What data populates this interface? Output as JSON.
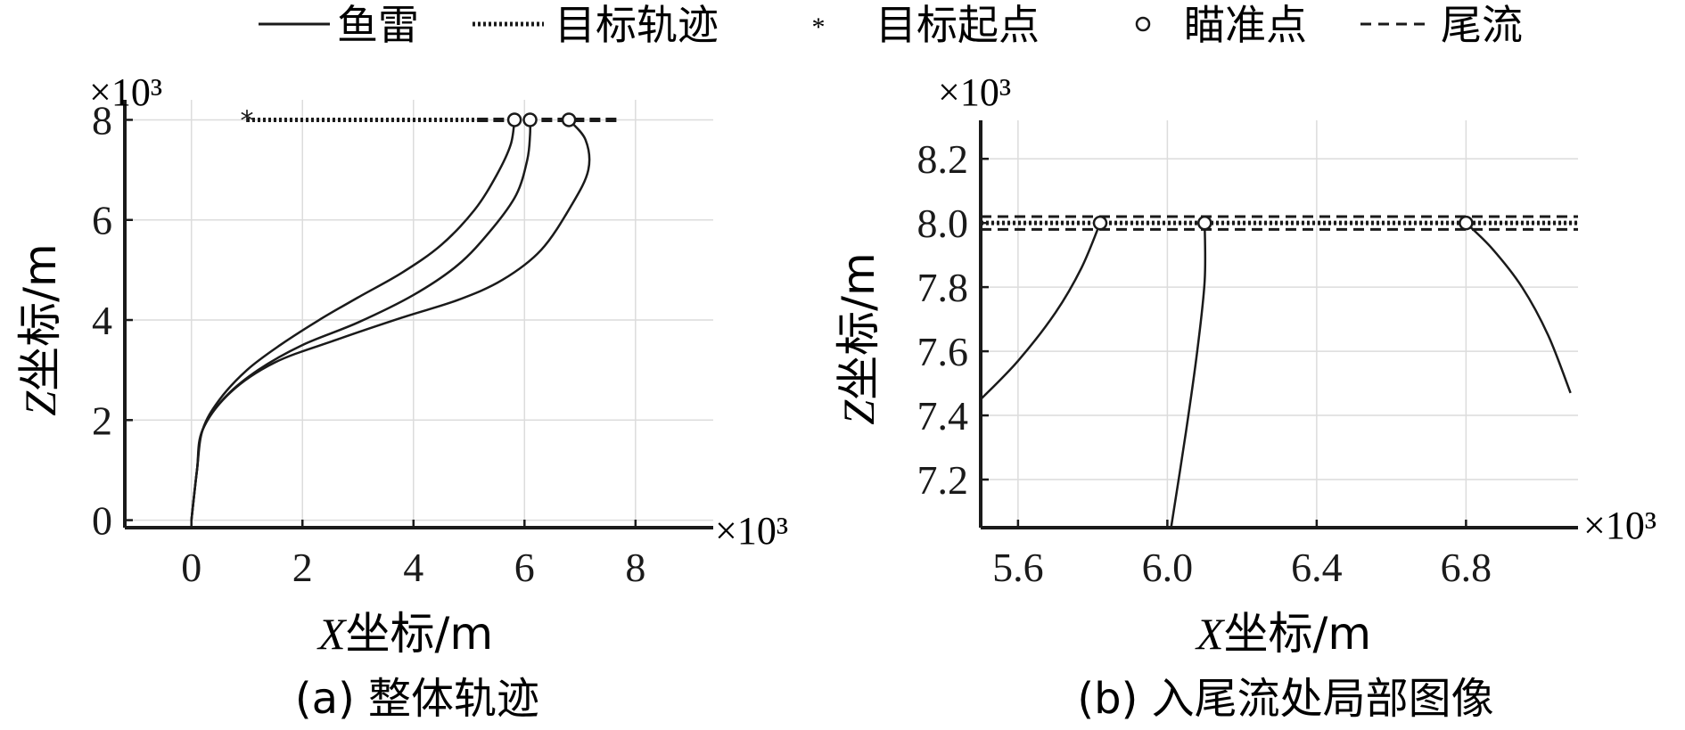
{
  "legend": [
    {
      "label": "鱼雷",
      "style": "solid"
    },
    {
      "label": "目标轨迹",
      "style": "dotted"
    },
    {
      "label": "目标起点",
      "style": "star"
    },
    {
      "label": "瞄准点",
      "style": "circle"
    },
    {
      "label": "尾流",
      "style": "dashed"
    }
  ],
  "colors": {
    "line": "#1a1a1a",
    "grid": "#dcdcdc"
  },
  "chart_data": [
    {
      "type": "line",
      "caption": "(a) 整体轨迹",
      "xlabel_var": "X",
      "xlabel_rest": "坐标/m",
      "ylabel_var": "Z",
      "ylabel_rest": "坐标/m",
      "x_multiplier": "×10³",
      "y_multiplier": "×10³",
      "xlim": [
        -1.2,
        9.4
      ],
      "ylim": [
        -0.15,
        8.4
      ],
      "xticks": [
        0,
        2,
        4,
        6,
        8
      ],
      "yticks": [
        0,
        2,
        4,
        6,
        8
      ],
      "xtick_labels": [
        "0",
        "2",
        "4",
        "6",
        "8"
      ],
      "ytick_labels": [
        "0",
        "2",
        "4",
        "6",
        "8"
      ],
      "grid": true,
      "series": [
        {
          "name": "鱼雷",
          "style": "solid",
          "points": [
            [
              0,
              0
            ],
            [
              0.1,
              1.0
            ],
            [
              0.2,
              1.8
            ],
            [
              0.5,
              2.4
            ],
            [
              1.0,
              3.0
            ],
            [
              1.6,
              3.5
            ],
            [
              2.3,
              4.0
            ],
            [
              3.0,
              4.45
            ],
            [
              3.8,
              4.95
            ],
            [
              4.5,
              5.5
            ],
            [
              5.1,
              6.2
            ],
            [
              5.5,
              6.9
            ],
            [
              5.75,
              7.5
            ],
            [
              5.82,
              8.0
            ]
          ]
        },
        {
          "name": "鱼雷",
          "style": "solid",
          "points": [
            [
              0,
              0
            ],
            [
              0.1,
              1.0
            ],
            [
              0.2,
              1.8
            ],
            [
              0.6,
              2.45
            ],
            [
              1.2,
              3.0
            ],
            [
              2.0,
              3.5
            ],
            [
              3.0,
              3.95
            ],
            [
              4.0,
              4.5
            ],
            [
              4.8,
              5.1
            ],
            [
              5.4,
              5.8
            ],
            [
              5.85,
              6.5
            ],
            [
              6.05,
              7.2
            ],
            [
              6.1,
              7.7
            ],
            [
              6.1,
              8.0
            ]
          ]
        },
        {
          "name": "鱼雷",
          "style": "solid",
          "points": [
            [
              0,
              0
            ],
            [
              0.1,
              1.0
            ],
            [
              0.2,
              1.8
            ],
            [
              0.7,
              2.55
            ],
            [
              1.5,
              3.15
            ],
            [
              2.6,
              3.6
            ],
            [
              3.8,
              4.05
            ],
            [
              4.8,
              4.4
            ],
            [
              5.6,
              4.8
            ],
            [
              6.3,
              5.4
            ],
            [
              6.85,
              6.3
            ],
            [
              7.15,
              7.0
            ],
            [
              7.1,
              7.6
            ],
            [
              6.8,
              8.0
            ]
          ]
        }
      ],
      "target_track": {
        "x": [
          1.0,
          5.15
        ],
        "z": 8.0
      },
      "target_start": {
        "x": 1.0,
        "z": 8.0
      },
      "aim_points": [
        [
          5.82,
          8.0
        ],
        [
          6.1,
          8.0
        ],
        [
          6.8,
          8.0
        ]
      ],
      "wake": {
        "x": [
          5.15,
          7.7
        ],
        "z": 8.0
      }
    },
    {
      "type": "line",
      "caption": "(b) 入尾流处局部图像",
      "xlabel_var": "X",
      "xlabel_rest": "坐标/m",
      "ylabel_var": "Z",
      "ylabel_rest": "坐标/m",
      "x_multiplier": "×10³",
      "y_multiplier": "×10³",
      "xlim": [
        5.5,
        7.1
      ],
      "ylim": [
        7.05,
        8.32
      ],
      "xticks": [
        5.6,
        6.0,
        6.4,
        6.8
      ],
      "yticks": [
        7.2,
        7.4,
        7.6,
        7.8,
        8.0,
        8.2
      ],
      "xtick_labels": [
        "5.6",
        "6.0",
        "6.4",
        "6.8"
      ],
      "ytick_labels": [
        "7.2",
        "7.4",
        "7.6",
        "7.8",
        "8.0",
        "8.2"
      ],
      "grid": true,
      "series": [
        {
          "name": "鱼雷",
          "style": "solid",
          "points": [
            [
              5.5,
              7.45
            ],
            [
              5.6,
              7.57
            ],
            [
              5.7,
              7.72
            ],
            [
              5.77,
              7.86
            ],
            [
              5.82,
              8.0
            ]
          ]
        },
        {
          "name": "鱼雷",
          "style": "solid",
          "points": [
            [
              6.01,
              7.05
            ],
            [
              6.05,
              7.35
            ],
            [
              6.08,
              7.6
            ],
            [
              6.1,
              7.82
            ],
            [
              6.1,
              8.0
            ]
          ]
        },
        {
          "name": "鱼雷",
          "style": "solid",
          "points": [
            [
              6.8,
              8.0
            ],
            [
              6.87,
              7.92
            ],
            [
              6.95,
              7.8
            ],
            [
              7.02,
              7.65
            ],
            [
              7.08,
              7.47
            ]
          ]
        }
      ],
      "target_track": {
        "x": [
          5.5,
          7.1
        ],
        "z": 8.0
      },
      "aim_points": [
        [
          5.82,
          8.0
        ],
        [
          6.1,
          8.0
        ],
        [
          6.8,
          8.0
        ]
      ],
      "wake": {
        "x": [
          5.5,
          7.1
        ],
        "z_upper": 8.02,
        "z_lower": 7.98
      }
    }
  ]
}
